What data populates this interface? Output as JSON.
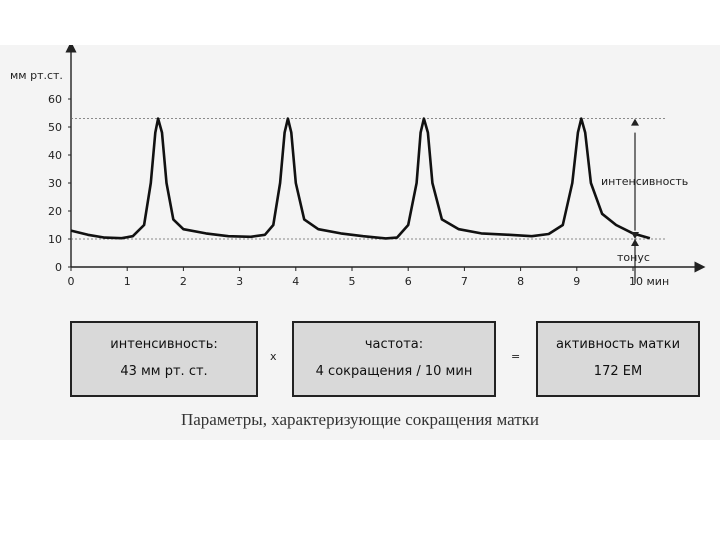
{
  "chart_data": {
    "type": "line",
    "ylabel": "мм рт.ст.",
    "xlabel": "10 мин",
    "yticks": [
      0,
      10,
      20,
      30,
      40,
      50,
      60
    ],
    "xticks": [
      "0",
      "1",
      "2",
      "3",
      "4",
      "5",
      "6",
      "7",
      "8",
      "9",
      "10 мин"
    ],
    "xlim": [
      0,
      11
    ],
    "ylim": [
      0,
      60
    ],
    "reference_lines": [
      {
        "y": 53,
        "style": "dashed"
      },
      {
        "y": 10,
        "style": "dashed"
      }
    ],
    "annotations": {
      "intensity": "интенсивность",
      "tone": "тонус"
    },
    "series": [
      {
        "points": [
          [
            0.0,
            13
          ],
          [
            0.3,
            11.5
          ],
          [
            0.6,
            10.5
          ],
          [
            0.9,
            10.3
          ],
          [
            1.1,
            11
          ],
          [
            1.3,
            15
          ],
          [
            1.42,
            30
          ],
          [
            1.5,
            48
          ],
          [
            1.55,
            53
          ],
          [
            1.62,
            48
          ],
          [
            1.7,
            30
          ],
          [
            1.82,
            17
          ],
          [
            2.0,
            13.5
          ],
          [
            2.4,
            12
          ],
          [
            2.8,
            11
          ],
          [
            3.2,
            10.8
          ],
          [
            3.45,
            11.5
          ],
          [
            3.6,
            15
          ],
          [
            3.72,
            30
          ],
          [
            3.8,
            48
          ],
          [
            3.86,
            53
          ],
          [
            3.92,
            48
          ],
          [
            4.0,
            30
          ],
          [
            4.15,
            17
          ],
          [
            4.4,
            13.5
          ],
          [
            4.8,
            12
          ],
          [
            5.2,
            11
          ],
          [
            5.6,
            10.2
          ],
          [
            5.8,
            10.5
          ],
          [
            6.0,
            15
          ],
          [
            6.15,
            30
          ],
          [
            6.22,
            48
          ],
          [
            6.28,
            53
          ],
          [
            6.35,
            48
          ],
          [
            6.43,
            30
          ],
          [
            6.6,
            17
          ],
          [
            6.9,
            13.5
          ],
          [
            7.3,
            12
          ],
          [
            7.8,
            11.5
          ],
          [
            8.2,
            11
          ],
          [
            8.5,
            11.8
          ],
          [
            8.75,
            15
          ],
          [
            8.92,
            30
          ],
          [
            9.02,
            48
          ],
          [
            9.08,
            53
          ],
          [
            9.15,
            48
          ],
          [
            9.25,
            30
          ],
          [
            9.45,
            19
          ],
          [
            9.7,
            15
          ],
          [
            10.0,
            12
          ],
          [
            10.3,
            10.3
          ]
        ]
      }
    ]
  },
  "boxes": {
    "intensity": {
      "line1": "интенсивность:",
      "line2": "43 мм рт. ст."
    },
    "frequency": {
      "line1": "частота:",
      "line2": "4 сокращения / 10 мин"
    },
    "activity": {
      "line1": "активность матки",
      "line2": "172 ЕМ"
    },
    "op_multiply": "x",
    "op_equals": "="
  },
  "caption": "Параметры, характеризующие сокращения матки"
}
